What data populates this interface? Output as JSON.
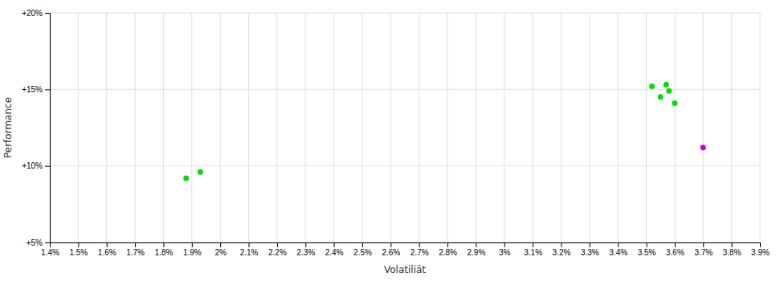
{
  "chart_data": {
    "type": "scatter",
    "xlabel": "Volatiliät",
    "ylabel": "Performance",
    "xlim": [
      0.014,
      0.039
    ],
    "ylim": [
      0.05,
      0.2
    ],
    "xticks": [
      {
        "value": 0.014,
        "label": "1.4%"
      },
      {
        "value": 0.015,
        "label": "1.5%"
      },
      {
        "value": 0.016,
        "label": "1.6%"
      },
      {
        "value": 0.017,
        "label": "1.7%"
      },
      {
        "value": 0.018,
        "label": "1.8%"
      },
      {
        "value": 0.019,
        "label": "1.9%"
      },
      {
        "value": 0.02,
        "label": "2%"
      },
      {
        "value": 0.021,
        "label": "2.1%"
      },
      {
        "value": 0.022,
        "label": "2.2%"
      },
      {
        "value": 0.023,
        "label": "2.3%"
      },
      {
        "value": 0.024,
        "label": "2.4%"
      },
      {
        "value": 0.025,
        "label": "2.5%"
      },
      {
        "value": 0.026,
        "label": "2.6%"
      },
      {
        "value": 0.027,
        "label": "2.7%"
      },
      {
        "value": 0.028,
        "label": "2.8%"
      },
      {
        "value": 0.029,
        "label": "2.9%"
      },
      {
        "value": 0.03,
        "label": "3%"
      },
      {
        "value": 0.031,
        "label": "3.1%"
      },
      {
        "value": 0.032,
        "label": "3.2%"
      },
      {
        "value": 0.033,
        "label": "3.3%"
      },
      {
        "value": 0.034,
        "label": "3.4%"
      },
      {
        "value": 0.035,
        "label": "3.5%"
      },
      {
        "value": 0.036,
        "label": "3.6%"
      },
      {
        "value": 0.037,
        "label": "3.7%"
      },
      {
        "value": 0.038,
        "label": "3.8%"
      },
      {
        "value": 0.039,
        "label": "3.9%"
      }
    ],
    "yticks": [
      {
        "value": 0.05,
        "label": "+5%"
      },
      {
        "value": 0.1,
        "label": "+10%"
      },
      {
        "value": 0.15,
        "label": "+15%"
      },
      {
        "value": 0.2,
        "label": "+20%"
      }
    ],
    "grid": true,
    "series": [
      {
        "color": "#00dd00",
        "x": [
          0.0188,
          0.0193,
          0.0352,
          0.0357,
          0.0358,
          0.0355,
          0.036
        ],
        "values": [
          0.092,
          0.096,
          0.152,
          0.153,
          0.149,
          0.145,
          0.141
        ]
      },
      {
        "color": "#cc00cc",
        "x": [
          0.037
        ],
        "values": [
          0.112
        ]
      }
    ]
  }
}
